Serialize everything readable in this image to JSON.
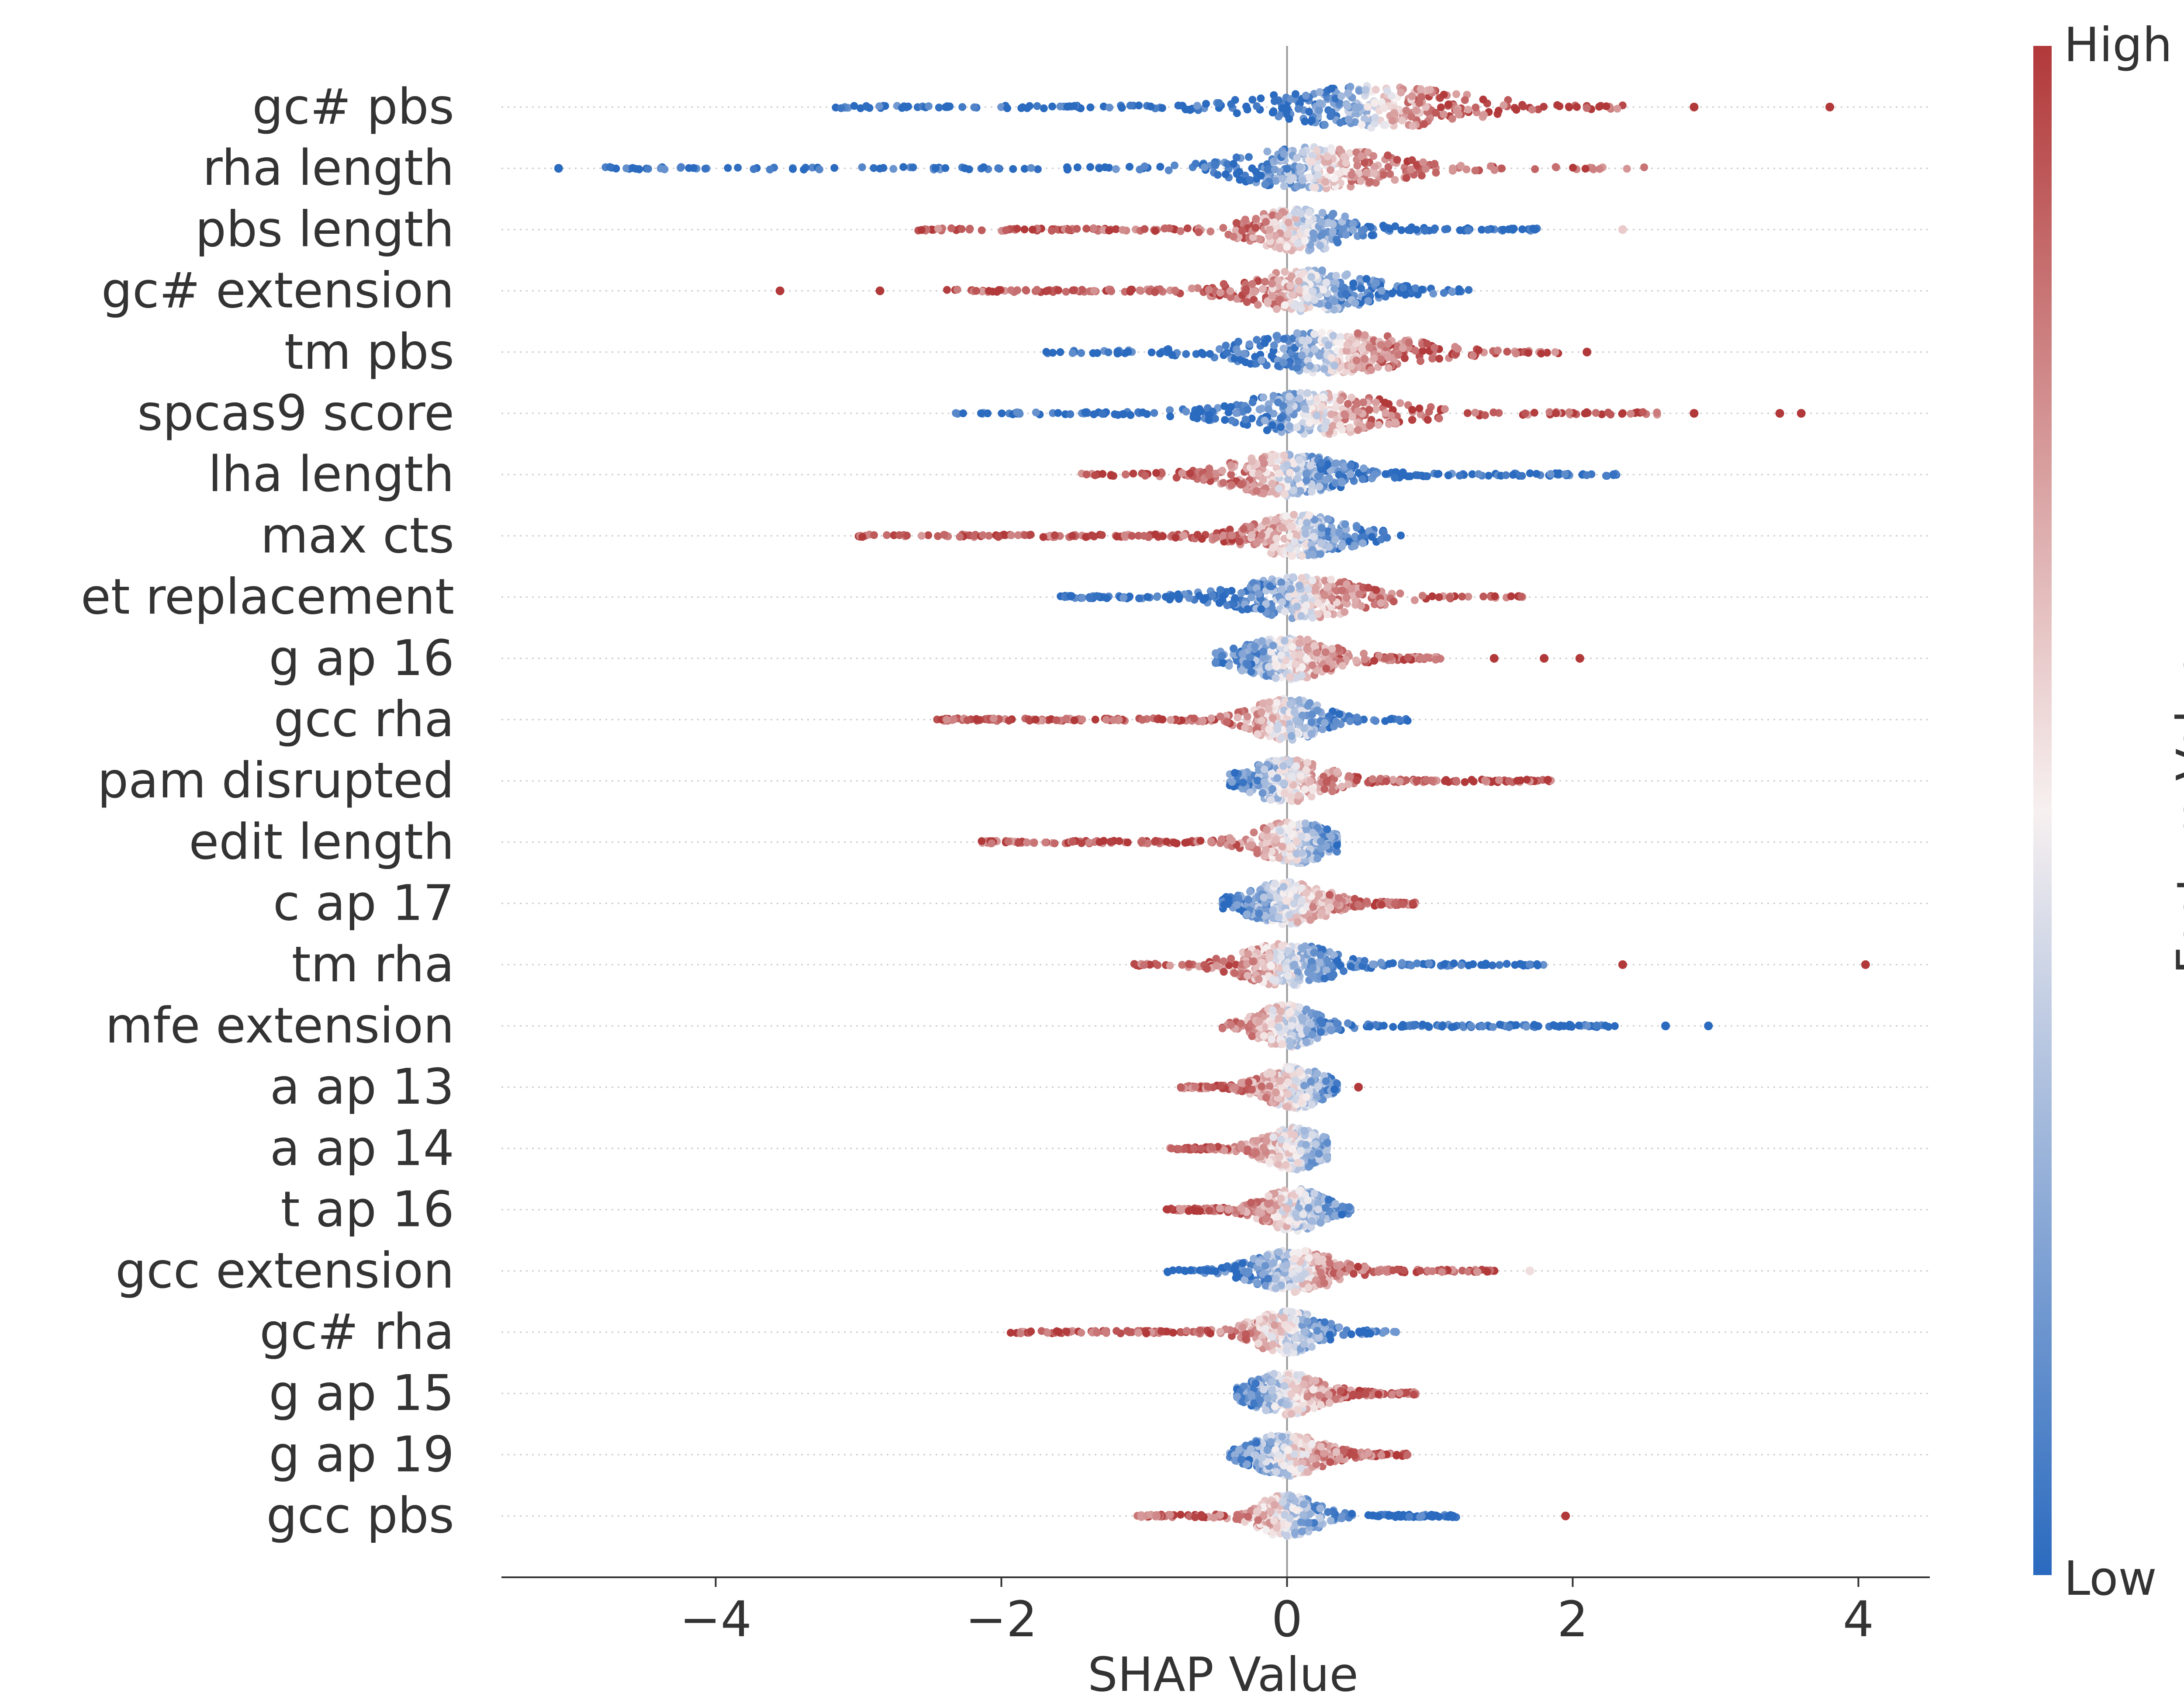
{
  "chart_data": {
    "type": "scatter",
    "subtype": "shap-beeswarm-summary",
    "xlabel": "SHAP Value",
    "ylabel": "",
    "xlim": [
      -5.5,
      4.5
    ],
    "xticks": [
      -4,
      -2,
      0,
      2,
      4
    ],
    "xtick_labels": [
      "−4",
      "−2",
      "0",
      "2",
      "4"
    ],
    "grid": "horizontal-dotted",
    "colorbar": {
      "title": "Feature Value",
      "high_label": "High",
      "low_label": "Low",
      "high_color": "#b2393a",
      "mid_color": "#f7f0f0",
      "low_color": "#2a6abf"
    },
    "features": [
      {
        "name": "gc# pbs",
        "min": -3.2,
        "max": 2.35,
        "spread": 0.95,
        "peak": 0.6,
        "low_side": "left",
        "outliers": [
          2.85,
          3.8
        ],
        "outlier_value": 1
      },
      {
        "name": "rha length",
        "min": -4.8,
        "max": 2.6,
        "spread": 0.75,
        "peak": 0.2,
        "low_side": "left",
        "outliers": [
          -5.1
        ],
        "outlier_value": 0
      },
      {
        "name": "pbs length",
        "min": -2.6,
        "max": 1.8,
        "spread": 0.5,
        "peak": 0.1,
        "low_side": "right",
        "outliers": [
          2.35
        ],
        "outlier_value": 0.6
      },
      {
        "name": "gc# extension",
        "min": -2.4,
        "max": 1.35,
        "spread": 0.6,
        "peak": 0.15,
        "low_side": "right",
        "outliers": [
          -3.55,
          -2.85
        ],
        "outlier_value": 1
      },
      {
        "name": "tm pbs",
        "min": -1.7,
        "max": 1.9,
        "spread": 0.8,
        "peak": 0.3,
        "low_side": "left",
        "outliers": [
          2.1
        ],
        "outlier_value": 1
      },
      {
        "name": "spcas9 score",
        "min": -2.35,
        "max": 2.6,
        "spread": 0.75,
        "peak": 0.2,
        "low_side": "left",
        "outliers": [
          2.85,
          3.45,
          3.6
        ],
        "outlier_value": 1
      },
      {
        "name": "lha length",
        "min": -1.5,
        "max": 2.35,
        "spread": 0.55,
        "peak": 0.0,
        "low_side": "right",
        "outliers": [],
        "outlier_value": 1
      },
      {
        "name": "max cts",
        "min": -3.0,
        "max": 0.85,
        "spread": 0.5,
        "peak": 0.1,
        "low_side": "right",
        "outliers": [],
        "outlier_value": 1
      },
      {
        "name": "et replacement",
        "min": -1.6,
        "max": 1.65,
        "spread": 0.6,
        "peak": 0.1,
        "low_side": "left",
        "outliers": [],
        "outlier_value": 1
      },
      {
        "name": "g ap 16",
        "min": -0.5,
        "max": 1.1,
        "spread": 0.45,
        "peak": 0.0,
        "low_side": "left",
        "outliers": [
          1.45,
          1.8,
          2.05
        ],
        "outlier_value": 1
      },
      {
        "name": "gcc rha",
        "min": -2.5,
        "max": 0.85,
        "spread": 0.35,
        "peak": 0.0,
        "low_side": "right",
        "outliers": [],
        "outlier_value": 1
      },
      {
        "name": "pam disrupted",
        "min": -0.4,
        "max": 1.85,
        "spread": 0.4,
        "peak": 0.0,
        "low_side": "left",
        "outliers": [],
        "outlier_value": 1
      },
      {
        "name": "edit length",
        "min": -2.15,
        "max": 0.35,
        "spread": 0.35,
        "peak": 0.05,
        "low_side": "right",
        "outliers": [],
        "outlier_value": 1
      },
      {
        "name": "c ap 17",
        "min": -0.45,
        "max": 0.9,
        "spread": 0.4,
        "peak": 0.0,
        "low_side": "left",
        "outliers": [],
        "outlier_value": 1
      },
      {
        "name": "tm rha",
        "min": -1.1,
        "max": 1.8,
        "spread": 0.45,
        "peak": 0.0,
        "low_side": "right",
        "outliers": [
          2.35,
          4.05
        ],
        "outlier_value": 1
      },
      {
        "name": "mfe extension",
        "min": -0.5,
        "max": 2.35,
        "spread": 0.3,
        "peak": 0.0,
        "low_side": "right",
        "outliers": [
          2.65,
          2.95
        ],
        "outlier_value": 0
      },
      {
        "name": "a ap 13",
        "min": -0.75,
        "max": 0.35,
        "spread": 0.3,
        "peak": 0.05,
        "low_side": "right",
        "outliers": [
          0.5
        ],
        "outlier_value": 1
      },
      {
        "name": "a ap 14",
        "min": -0.82,
        "max": 0.28,
        "spread": 0.3,
        "peak": 0.05,
        "low_side": "right",
        "outliers": [],
        "outlier_value": 1
      },
      {
        "name": "t ap 16",
        "min": -0.85,
        "max": 0.45,
        "spread": 0.3,
        "peak": 0.05,
        "low_side": "right",
        "outliers": [],
        "outlier_value": 1
      },
      {
        "name": "gcc extension",
        "min": -0.85,
        "max": 1.5,
        "spread": 0.4,
        "peak": 0.05,
        "low_side": "left",
        "outliers": [
          1.7
        ],
        "outlier_value": 0.55
      },
      {
        "name": "gc# rha",
        "min": -1.95,
        "max": 0.8,
        "spread": 0.35,
        "peak": 0.0,
        "low_side": "right",
        "outliers": [],
        "outlier_value": 1
      },
      {
        "name": "g ap 15",
        "min": -0.35,
        "max": 0.9,
        "spread": 0.35,
        "peak": 0.0,
        "low_side": "left",
        "outliers": [],
        "outlier_value": 1
      },
      {
        "name": "g ap 19",
        "min": -0.4,
        "max": 0.85,
        "spread": 0.35,
        "peak": 0.0,
        "low_side": "left",
        "outliers": [],
        "outlier_value": 1
      },
      {
        "name": "gcc pbs",
        "min": -1.05,
        "max": 1.2,
        "spread": 0.3,
        "peak": 0.0,
        "low_side": "right",
        "outliers": [
          1.95
        ],
        "outlier_value": 1
      }
    ]
  }
}
